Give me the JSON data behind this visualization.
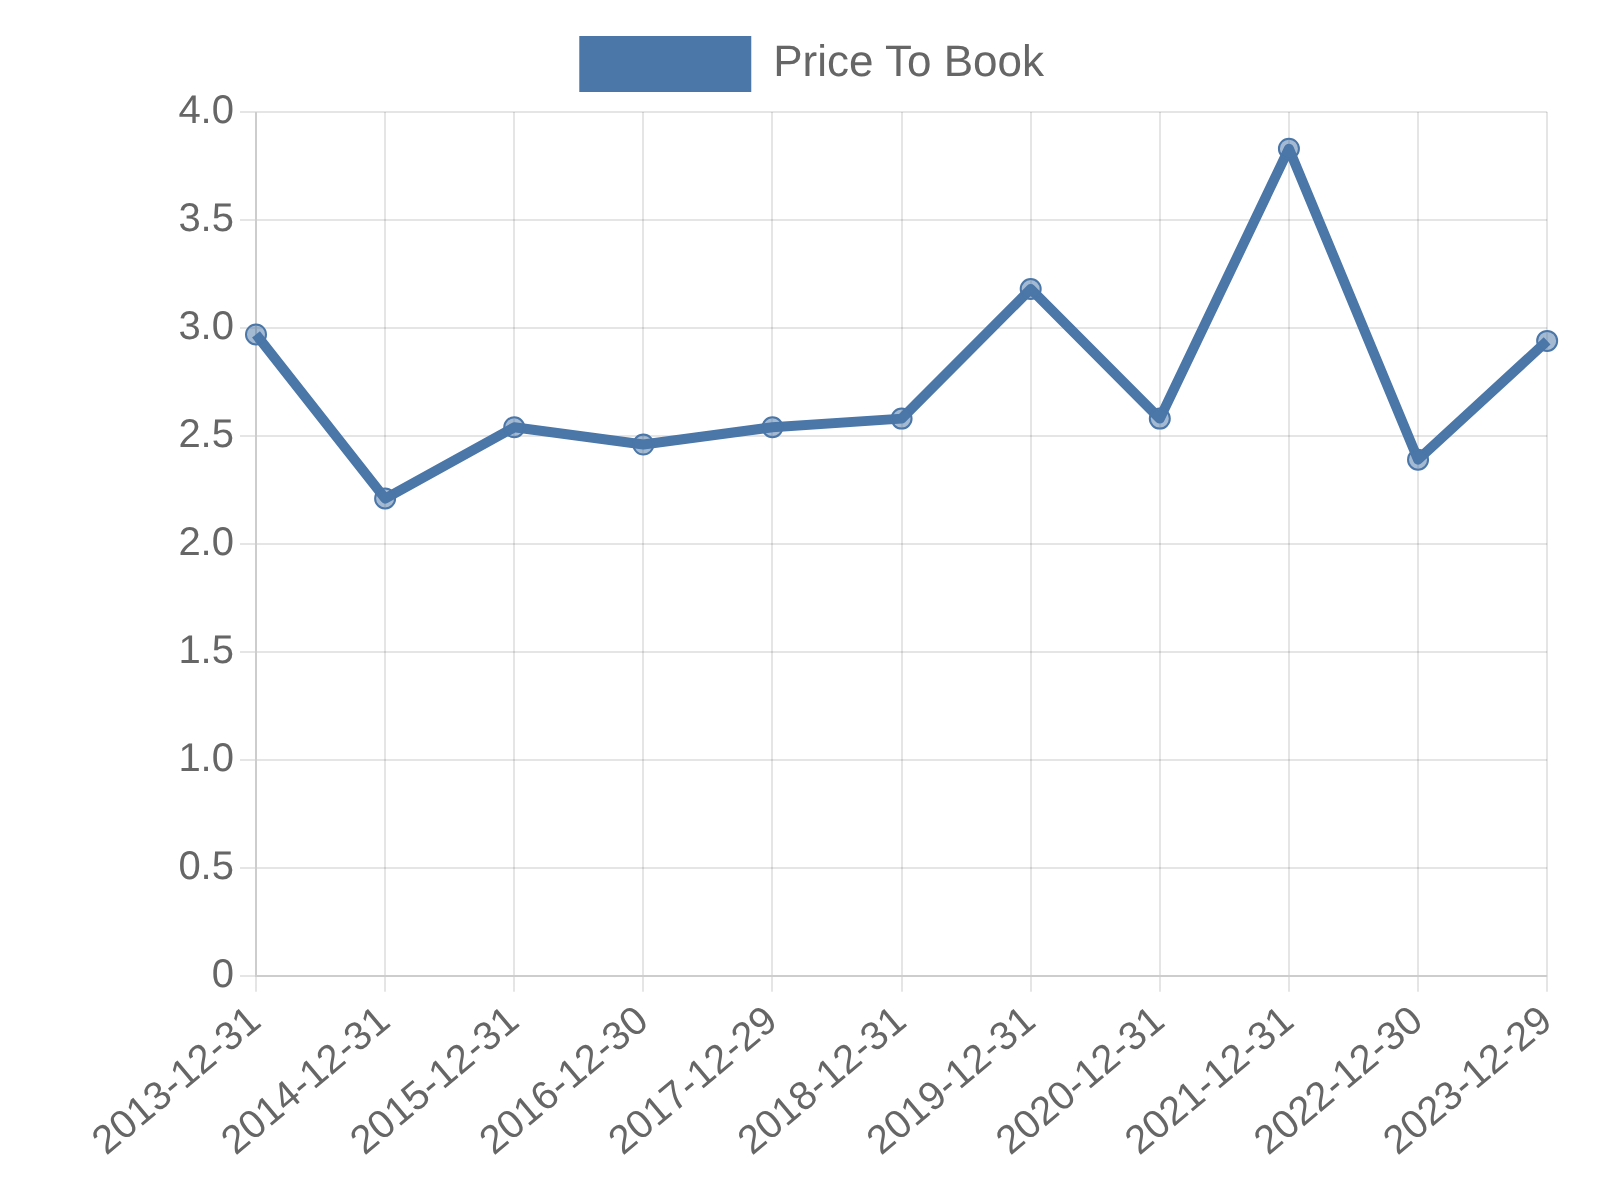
{
  "chart_data": {
    "type": "line",
    "categories": [
      "2013-12-31",
      "2014-12-31",
      "2015-12-31",
      "2016-12-30",
      "2017-12-29",
      "2018-12-31",
      "2019-12-31",
      "2020-12-31",
      "2021-12-31",
      "2022-12-30",
      "2023-12-29"
    ],
    "series": [
      {
        "name": "Price To Book",
        "color": "#4a76a8",
        "values": [
          2.97,
          2.21,
          2.54,
          2.46,
          2.54,
          2.58,
          3.18,
          2.58,
          3.83,
          2.39,
          2.94
        ]
      }
    ],
    "ylim": [
      0,
      4
    ],
    "yticks": [
      0,
      {
        "value": 0.5,
        "label": "0.5"
      },
      {
        "value": 1,
        "label": "1.0"
      },
      {
        "value": 1.5,
        "label": "1.5"
      },
      {
        "value": 2,
        "label": "2.0"
      },
      {
        "value": 2.5,
        "label": "2.5"
      },
      {
        "value": 3,
        "label": "3.0"
      },
      {
        "value": 3.5,
        "label": "3.5"
      },
      {
        "value": 4,
        "label": "4.0"
      }
    ],
    "grid": true,
    "legend": "top",
    "marker": "circle",
    "line_style": "solid"
  }
}
